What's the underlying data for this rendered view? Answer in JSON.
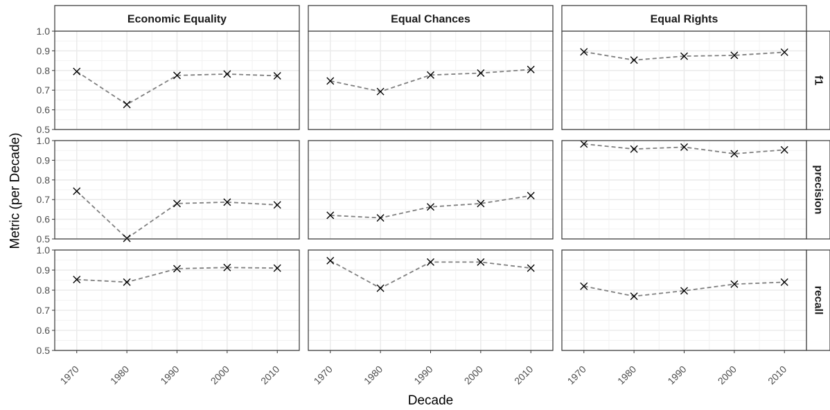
{
  "chart_data": {
    "type": "line",
    "xlabel": "Decade",
    "ylabel": "Metric (per Decade)",
    "x": [
      "1970",
      "1980",
      "1990",
      "2000",
      "2010"
    ],
    "ylim": [
      0.5,
      1.0
    ],
    "yticks": [
      "0.5",
      "0.6",
      "0.7",
      "0.8",
      "0.9",
      "1.0"
    ],
    "columns": [
      "Economic Equality",
      "Equal Chances",
      "Equal Rights"
    ],
    "rows": [
      "f1",
      "precision",
      "recall"
    ],
    "grid": true,
    "line_style": "dashed",
    "line_color": "#7f7f7f",
    "marker": "x",
    "marker_color": "#000000",
    "panels": [
      {
        "column": "Economic Equality",
        "row": "f1",
        "values": [
          0.795,
          0.627,
          0.775,
          0.782,
          0.773
        ]
      },
      {
        "column": "Equal Chances",
        "row": "f1",
        "values": [
          0.747,
          0.693,
          0.777,
          0.787,
          0.805
        ]
      },
      {
        "column": "Equal Rights",
        "row": "f1",
        "values": [
          0.895,
          0.853,
          0.873,
          0.877,
          0.893
        ]
      },
      {
        "column": "Economic Equality",
        "row": "precision",
        "values": [
          0.743,
          0.503,
          0.68,
          0.687,
          0.673
        ]
      },
      {
        "column": "Equal Chances",
        "row": "precision",
        "values": [
          0.62,
          0.607,
          0.663,
          0.68,
          0.72
        ]
      },
      {
        "column": "Equal Rights",
        "row": "precision",
        "values": [
          0.983,
          0.957,
          0.967,
          0.933,
          0.953
        ]
      },
      {
        "column": "Economic Equality",
        "row": "recall",
        "values": [
          0.853,
          0.84,
          0.907,
          0.913,
          0.91
        ]
      },
      {
        "column": "Equal Chances",
        "row": "recall",
        "values": [
          0.947,
          0.81,
          0.94,
          0.94,
          0.91
        ]
      },
      {
        "column": "Equal Rights",
        "row": "recall",
        "values": [
          0.82,
          0.77,
          0.797,
          0.83,
          0.84
        ]
      }
    ]
  }
}
